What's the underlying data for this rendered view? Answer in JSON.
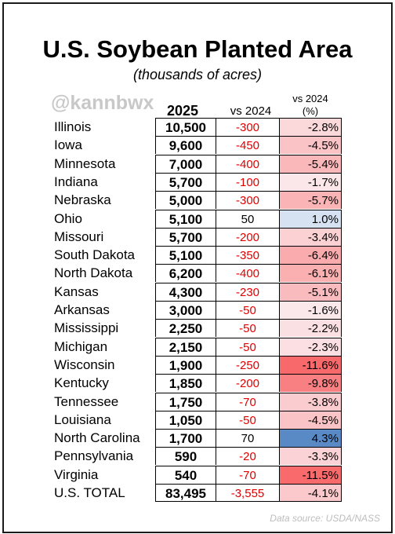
{
  "title": "U.S. Soybean Planted Area",
  "subtitle": "(thousands of acres)",
  "handle": "@kannbwx",
  "source": "Data source: USDA/NASS",
  "colors": {
    "negative_text": "#e00000",
    "positive_text": "#000000"
  },
  "chart_data": {
    "type": "table",
    "columns": [
      "",
      "2025",
      "vs 2024",
      "vs 2024 (%)"
    ],
    "column_headers": {
      "year": "2025",
      "change": "vs 2024",
      "pct_line1": "vs 2024",
      "pct_line2": "(%)"
    },
    "rows": [
      {
        "state": "Illinois",
        "value": "10,500",
        "change": "-300",
        "pct": "-2.8%",
        "pct_num": -2.8
      },
      {
        "state": "Iowa",
        "value": "9,600",
        "change": "-450",
        "pct": "-4.5%",
        "pct_num": -4.5
      },
      {
        "state": "Minnesota",
        "value": "7,000",
        "change": "-400",
        "pct": "-5.4%",
        "pct_num": -5.4
      },
      {
        "state": "Indiana",
        "value": "5,700",
        "change": "-100",
        "pct": "-1.7%",
        "pct_num": -1.7
      },
      {
        "state": "Nebraska",
        "value": "5,000",
        "change": "-300",
        "pct": "-5.7%",
        "pct_num": -5.7
      },
      {
        "state": "Ohio",
        "value": "5,100",
        "change": "50",
        "pct": "1.0%",
        "pct_num": 1.0
      },
      {
        "state": "Missouri",
        "value": "5,700",
        "change": "-200",
        "pct": "-3.4%",
        "pct_num": -3.4
      },
      {
        "state": "South Dakota",
        "value": "5,100",
        "change": "-350",
        "pct": "-6.4%",
        "pct_num": -6.4
      },
      {
        "state": "North Dakota",
        "value": "6,200",
        "change": "-400",
        "pct": "-6.1%",
        "pct_num": -6.1
      },
      {
        "state": "Kansas",
        "value": "4,300",
        "change": "-230",
        "pct": "-5.1%",
        "pct_num": -5.1
      },
      {
        "state": "Arkansas",
        "value": "3,000",
        "change": "-50",
        "pct": "-1.6%",
        "pct_num": -1.6
      },
      {
        "state": "Mississippi",
        "value": "2,250",
        "change": "-50",
        "pct": "-2.2%",
        "pct_num": -2.2
      },
      {
        "state": "Michigan",
        "value": "2,150",
        "change": "-50",
        "pct": "-2.3%",
        "pct_num": -2.3
      },
      {
        "state": "Wisconsin",
        "value": "1,900",
        "change": "-250",
        "pct": "-11.6%",
        "pct_num": -11.6
      },
      {
        "state": "Kentucky",
        "value": "1,850",
        "change": "-200",
        "pct": "-9.8%",
        "pct_num": -9.8
      },
      {
        "state": "Tennessee",
        "value": "1,750",
        "change": "-70",
        "pct": "-3.8%",
        "pct_num": -3.8
      },
      {
        "state": "Louisiana",
        "value": "1,050",
        "change": "-50",
        "pct": "-4.5%",
        "pct_num": -4.5
      },
      {
        "state": "North Carolina",
        "value": "1,700",
        "change": "70",
        "pct": "4.3%",
        "pct_num": 4.3
      },
      {
        "state": "Pennsylvania",
        "value": "590",
        "change": "-20",
        "pct": "-3.3%",
        "pct_num": -3.3
      },
      {
        "state": "Virginia",
        "value": "540",
        "change": "-70",
        "pct": "-11.5%",
        "pct_num": -11.5
      },
      {
        "state": "U.S. TOTAL",
        "value": "83,495",
        "change": "-3,555",
        "pct": "-4.1%",
        "pct_num": -4.1
      }
    ]
  }
}
